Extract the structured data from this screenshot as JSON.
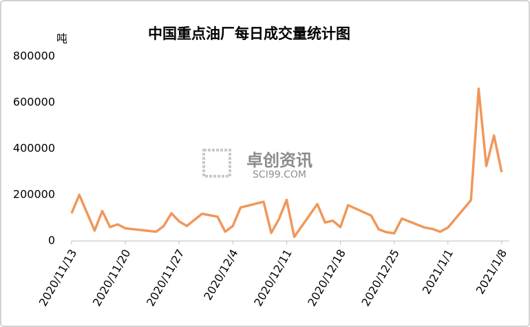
{
  "chart_data": {
    "type": "line",
    "title": "中国重点油厂每日成交量统计图",
    "y_label": "吨",
    "watermark": "卓创资讯",
    "watermark_sub": "SCI99.COM",
    "x": [
      "2020/11/13",
      "2020/11/14",
      "2020/11/16",
      "2020/11/17",
      "2020/11/18",
      "2020/11/19",
      "2020/11/20",
      "2020/11/24",
      "2020/11/25",
      "2020/11/26",
      "2020/11/27",
      "2020/11/28",
      "2020/11/30",
      "2020/12/2",
      "2020/12/3",
      "2020/12/4",
      "2020/12/5",
      "2020/12/8",
      "2020/12/9",
      "2020/12/10",
      "2020/12/11",
      "2020/12/12",
      "2020/12/15",
      "2020/12/16",
      "2020/12/17",
      "2020/12/18",
      "2020/12/19",
      "2020/12/22",
      "2020/12/23",
      "2020/12/24",
      "2020/12/25",
      "2020/12/26",
      "2020/12/29",
      "2020/12/30",
      "2020/12/31",
      "2021/1/1",
      "2021/1/4",
      "2021/1/5",
      "2021/1/6",
      "2021/1/7",
      "2021/1/8"
    ],
    "series": [
      {
        "name": "成交量",
        "color": "#f0975a",
        "values": [
          120000,
          200000,
          45000,
          130000,
          60000,
          72000,
          55000,
          40000,
          65000,
          120000,
          85000,
          65000,
          118000,
          105000,
          40000,
          65000,
          145000,
          170000,
          35000,
          95000,
          178000,
          18000,
          160000,
          80000,
          88000,
          60000,
          155000,
          110000,
          50000,
          38000,
          33000,
          97000,
          58000,
          52000,
          40000,
          58000,
          177000,
          660000,
          325000,
          457000,
          298000
        ]
      }
    ],
    "xlim": [
      "2020/11/13",
      "2021/1/9"
    ],
    "xticks": [
      "2020/11/13",
      "2020/11/20",
      "2020/11/27",
      "2020/12/4",
      "2020/12/11",
      "2020/12/18",
      "2020/12/25",
      "2021/1/1",
      "2021/1/8"
    ],
    "ylim": [
      0,
      800000
    ],
    "yticks": [
      0,
      200000,
      400000,
      600000,
      800000
    ],
    "grid": false
  }
}
